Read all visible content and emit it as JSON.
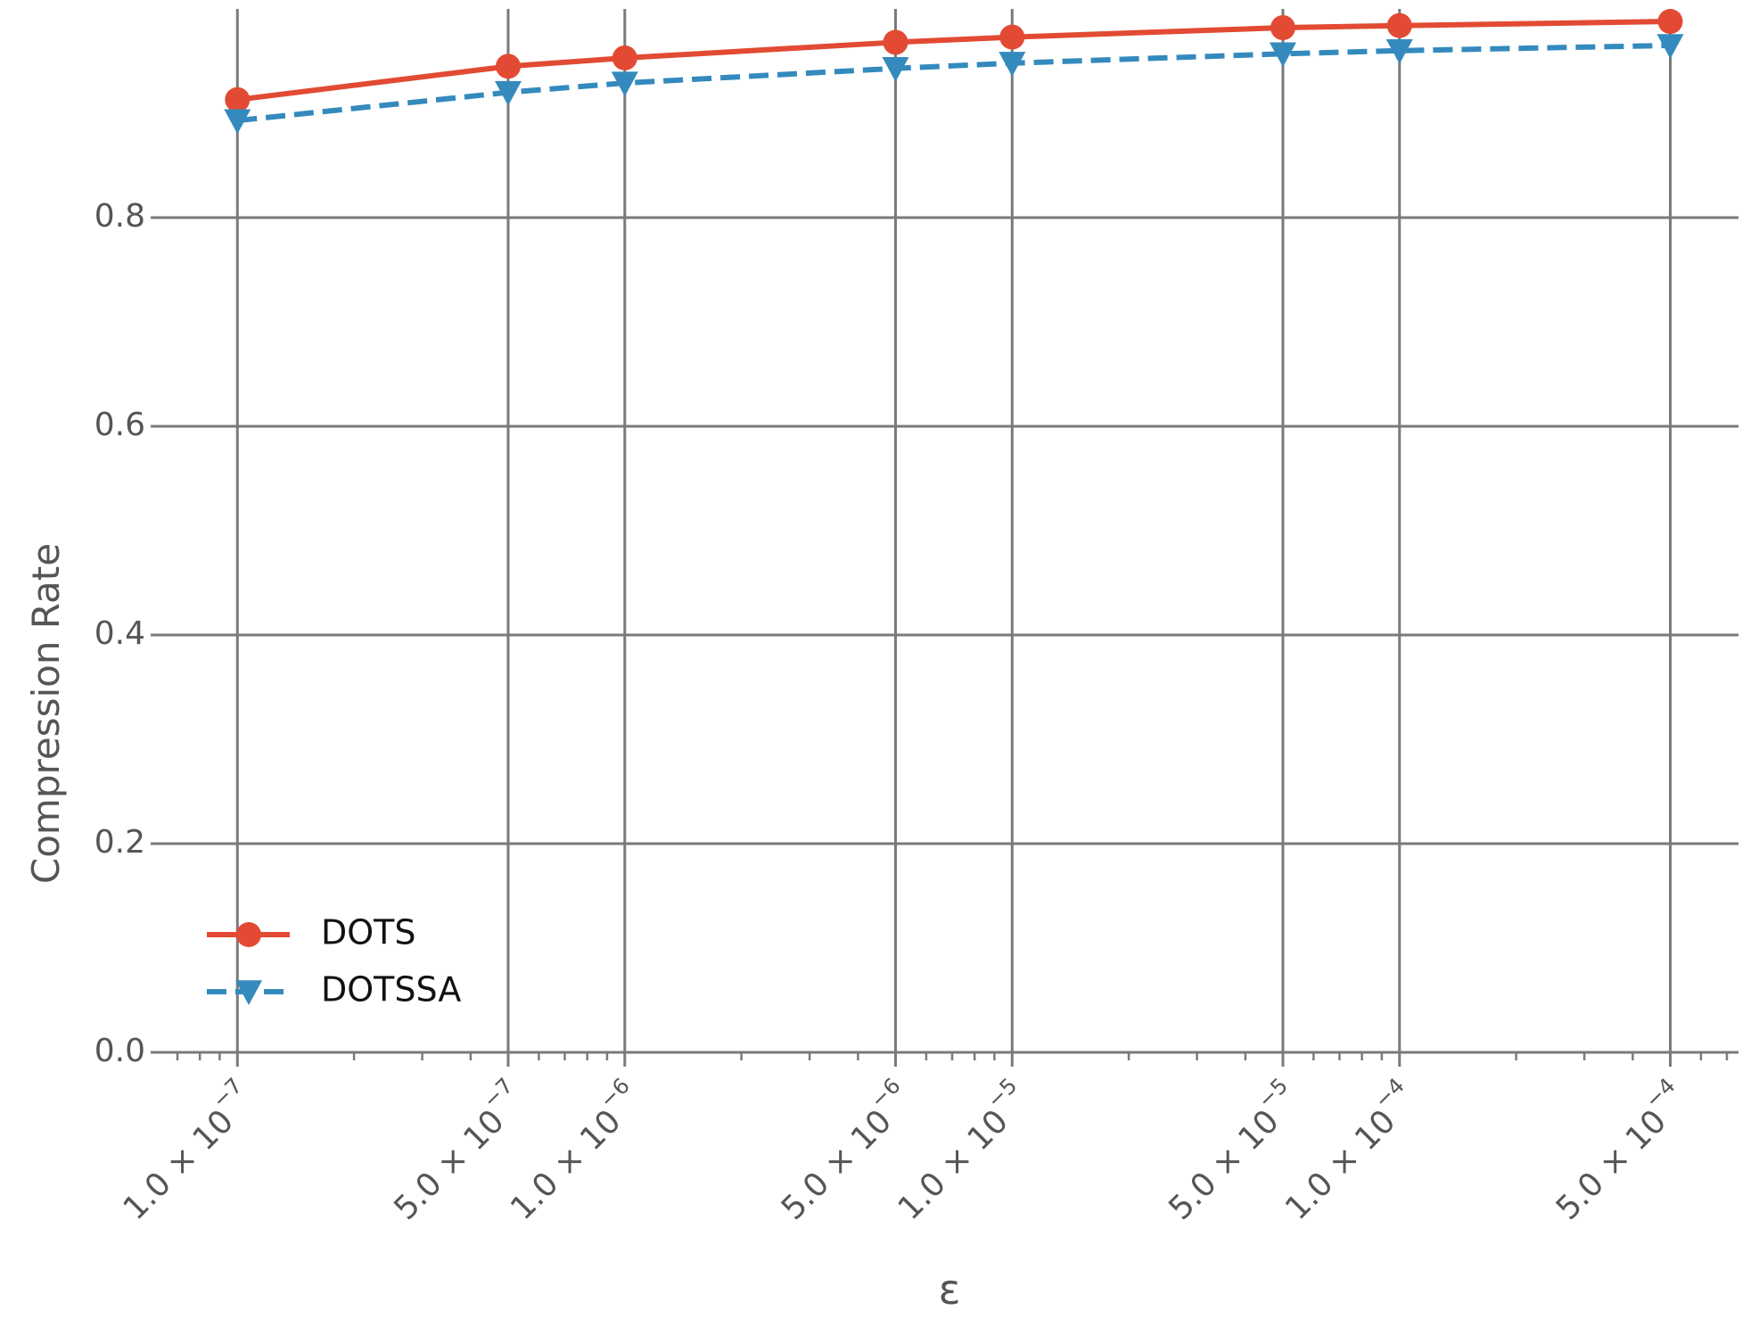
{
  "chart_data": {
    "type": "line",
    "xlabel": "ε",
    "ylabel": "Compression Rate",
    "xscale": "log",
    "xlim": [
      6.5e-08,
      0.00075
    ],
    "ylim": [
      0.0,
      1.0
    ],
    "grid": true,
    "legend_position": "lower-left",
    "x": [
      1e-07,
      5e-07,
      1e-06,
      5e-06,
      1e-05,
      5e-05,
      0.0001,
      0.0005
    ],
    "x_tick_labels": [
      {
        "x": 1e-07,
        "mantissa": "1.0 × 10",
        "exp": "−7"
      },
      {
        "x": 5e-07,
        "mantissa": "5.0 × 10",
        "exp": "−7"
      },
      {
        "x": 1e-06,
        "mantissa": "1.0 × 10",
        "exp": "−6"
      },
      {
        "x": 5e-06,
        "mantissa": "5.0 × 10",
        "exp": "−6"
      },
      {
        "x": 1e-05,
        "mantissa": "1.0 × 10",
        "exp": "−5"
      },
      {
        "x": 5e-05,
        "mantissa": "5.0 × 10",
        "exp": "−5"
      },
      {
        "x": 0.0001,
        "mantissa": "1.0 × 10",
        "exp": "−4"
      },
      {
        "x": 0.0005,
        "mantissa": "5.0 × 10",
        "exp": "−4"
      }
    ],
    "y_ticks": [
      {
        "value": 0.0,
        "label": "0.0"
      },
      {
        "value": 0.2,
        "label": "0.2"
      },
      {
        "value": 0.4,
        "label": "0.4"
      },
      {
        "value": 0.6,
        "label": "0.6"
      },
      {
        "value": 0.8,
        "label": "0.8"
      }
    ],
    "series": [
      {
        "name": "DOTS",
        "color": "#e24a33",
        "marker": "circle",
        "line_style": "solid",
        "values": [
          0.913,
          0.945,
          0.953,
          0.968,
          0.973,
          0.982,
          0.984,
          0.988
        ]
      },
      {
        "name": "DOTSSA",
        "color": "#348abd",
        "marker": "triangle-down",
        "line_style": "dashed",
        "values": [
          0.893,
          0.92,
          0.929,
          0.943,
          0.948,
          0.957,
          0.96,
          0.965
        ]
      }
    ]
  }
}
